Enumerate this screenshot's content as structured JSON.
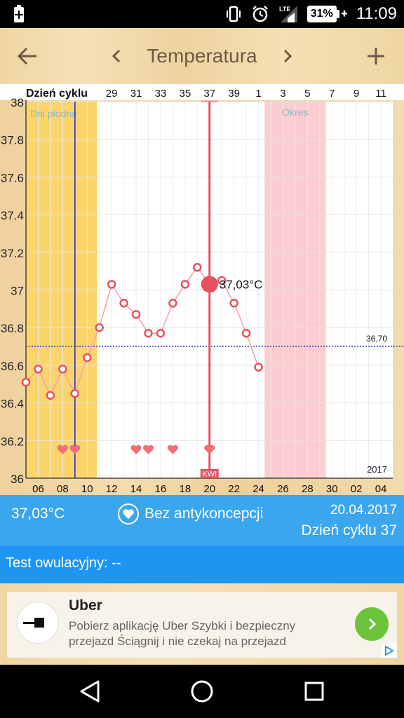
{
  "status_bar": {
    "time": "11:09",
    "battery_percent": "31%",
    "network": "LTE",
    "icons": [
      "battery-plus-icon",
      "vibrate-icon",
      "alarm-icon",
      "lte-signal-icon",
      "battery-icon"
    ]
  },
  "header": {
    "title": "Temperatura",
    "back_icon": "arrow-left-icon",
    "prev_icon": "chevron-left-icon",
    "next_icon": "chevron-right-icon",
    "add_icon": "plus-icon"
  },
  "chart_data": {
    "type": "line",
    "cycle_row_label": "Dzień cyklu",
    "cycle_ticks": [
      "29",
      "31",
      "33",
      "35",
      "37",
      "39",
      "1",
      "3",
      "5",
      "7",
      "9",
      "11"
    ],
    "x_ticks": [
      "06",
      "08",
      "10",
      "12",
      "14",
      "16",
      "18",
      "20",
      "22",
      "24",
      "26",
      "28",
      "30",
      "02",
      "04"
    ],
    "y_ticks": [
      "36",
      "36.2",
      "36.4",
      "36.6",
      "36.8",
      "37",
      "37.2",
      "37.4",
      "37.6",
      "37.8",
      "38"
    ],
    "ylim": [
      36,
      38
    ],
    "year_label": "2017",
    "points": [
      {
        "day": 0,
        "value": 36.51
      },
      {
        "day": 1,
        "value": 36.58
      },
      {
        "day": 2,
        "value": 36.44
      },
      {
        "day": 3,
        "value": 36.58
      },
      {
        "day": 4,
        "value": 36.45
      },
      {
        "day": 5,
        "value": 36.64
      },
      {
        "day": 6,
        "value": 36.8
      },
      {
        "day": 7,
        "value": 37.03
      },
      {
        "day": 8,
        "value": 36.93
      },
      {
        "day": 9,
        "value": 36.87
      },
      {
        "day": 10,
        "value": 36.77
      },
      {
        "day": 11,
        "value": 36.77
      },
      {
        "day": 12,
        "value": 36.93
      },
      {
        "day": 13,
        "value": 37.03
      },
      {
        "day": 14,
        "value": 37.12
      },
      {
        "day": 15,
        "value": 37.03
      },
      {
        "day": 16,
        "value": 37.05
      },
      {
        "day": 17,
        "value": 36.93
      },
      {
        "day": 18,
        "value": 36.77
      },
      {
        "day": 19,
        "value": 36.59
      }
    ],
    "selected_day": 15,
    "selected_label": "37,03°C",
    "coverline": {
      "value": 36.7,
      "label": "36,70"
    },
    "fertile_window": {
      "label": "Dni płodne",
      "from_day": 0,
      "to_day": 5.8
    },
    "period": {
      "label": "Okres",
      "from_day": 19.5,
      "to_day": 24.5
    },
    "ovulation_day": 4,
    "today_day": 15,
    "today_label": "KWI",
    "heart_days": [
      3,
      4,
      9,
      10,
      12,
      15
    ],
    "colors": {
      "line": "#f4a0a6",
      "marker": "#e5525f",
      "fertile": "#fbd46a",
      "period": "#fbcdd0",
      "coverline": "#2f3cc8",
      "ovulation": "#3b3fc6",
      "today": "#e05563"
    }
  },
  "info_bar": {
    "temperature": "37,03°C",
    "contraception": "Bez antykoncepcji",
    "date": "20.04.2017",
    "cycle_day": "Dzień cyklu 37"
  },
  "test_bar": {
    "label": "Test owulacyjny: --"
  },
  "ad": {
    "title": "Uber",
    "description": "Pobierz aplikację Uber Szybki i bezpieczny przejazd Ściągnij i nie czekaj na przejazd"
  },
  "nav_bar": {
    "icons": [
      "nav-back-icon",
      "nav-home-icon",
      "nav-recent-icon"
    ]
  }
}
